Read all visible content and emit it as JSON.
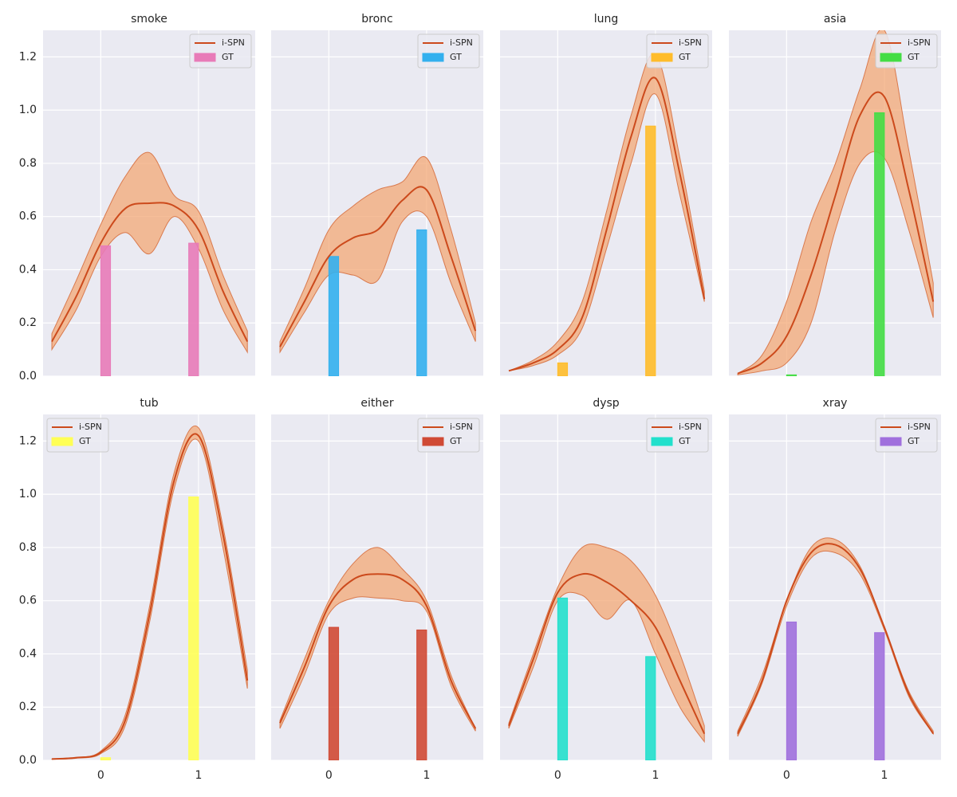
{
  "chart_data": [
    {
      "type": "line",
      "title": "smoke",
      "x": [
        -0.5,
        -0.25,
        0,
        0.25,
        0.5,
        0.75,
        1,
        1.25,
        1.5
      ],
      "xlim": [
        -0.59,
        1.58
      ],
      "ylim": [
        0,
        1.3
      ],
      "xticks": [
        0,
        1
      ],
      "yticks": [
        {
          "value": 0,
          "label": "0.0"
        },
        {
          "value": 0.2,
          "label": "0.2"
        },
        {
          "value": 0.4,
          "label": "0.4"
        },
        {
          "value": 0.6,
          "label": "0.6"
        },
        {
          "value": 0.8,
          "label": "0.8"
        },
        {
          "value": 1,
          "label": "1.0"
        },
        {
          "value": 1.2,
          "label": "1.2"
        }
      ],
      "legend": "upper right",
      "series": [
        {
          "name": "i-SPN",
          "color": "#cc4a1c",
          "values": [
            0.13,
            0.3,
            0.5,
            0.63,
            0.65,
            0.64,
            0.55,
            0.32,
            0.13
          ],
          "upper": [
            0.16,
            0.36,
            0.57,
            0.75,
            0.84,
            0.68,
            0.62,
            0.38,
            0.17
          ],
          "lower": [
            0.1,
            0.25,
            0.45,
            0.54,
            0.46,
            0.6,
            0.48,
            0.25,
            0.09
          ]
        }
      ],
      "bars": {
        "name": "GT",
        "color": "#e87bb8",
        "x": [
          0,
          0.9
        ],
        "width": 0.1,
        "values": [
          0.49,
          0.5
        ]
      }
    },
    {
      "type": "line",
      "title": "bronc",
      "x": [
        -0.5,
        -0.25,
        0,
        0.25,
        0.5,
        0.75,
        1,
        1.25,
        1.5
      ],
      "xlim": [
        -0.59,
        1.58
      ],
      "ylim": [
        0,
        1.3
      ],
      "xticks": [
        0,
        1
      ],
      "yticks": [
        0,
        0.2,
        0.4,
        0.6,
        0.8,
        1,
        1.2
      ],
      "legend": "upper right",
      "series": [
        {
          "name": "i-SPN",
          "color": "#cc4a1c",
          "values": [
            0.11,
            0.28,
            0.45,
            0.52,
            0.55,
            0.66,
            0.7,
            0.45,
            0.17
          ],
          "upper": [
            0.13,
            0.33,
            0.55,
            0.64,
            0.7,
            0.73,
            0.82,
            0.55,
            0.2
          ],
          "lower": [
            0.09,
            0.24,
            0.38,
            0.38,
            0.36,
            0.58,
            0.6,
            0.35,
            0.13
          ]
        }
      ],
      "bars": {
        "name": "GT",
        "color": "#33b0ee",
        "x": [
          0,
          0.9
        ],
        "width": 0.1,
        "values": [
          0.45,
          0.55
        ]
      }
    },
    {
      "type": "line",
      "title": "lung",
      "x": [
        -0.5,
        -0.25,
        0,
        0.25,
        0.5,
        0.75,
        1,
        1.25,
        1.5
      ],
      "xlim": [
        -0.59,
        1.58
      ],
      "ylim": [
        0,
        1.3
      ],
      "xticks": [
        0,
        1
      ],
      "yticks": [
        0,
        0.2,
        0.4,
        0.6,
        0.8,
        1,
        1.2
      ],
      "legend": "upper right",
      "series": [
        {
          "name": "i-SPN",
          "color": "#cc4a1c",
          "values": [
            0.02,
            0.05,
            0.1,
            0.22,
            0.55,
            0.9,
            1.12,
            0.76,
            0.29
          ],
          "upper": [
            0.02,
            0.06,
            0.13,
            0.28,
            0.62,
            0.98,
            1.21,
            0.82,
            0.32
          ],
          "lower": [
            0.02,
            0.04,
            0.08,
            0.18,
            0.48,
            0.8,
            1.06,
            0.68,
            0.28
          ]
        }
      ],
      "bars": {
        "name": "GT",
        "color": "#ffbc2a",
        "x": [
          0,
          0.9
        ],
        "width": 0.1,
        "values": [
          0.05,
          0.94
        ]
      }
    },
    {
      "type": "line",
      "title": "asia",
      "x": [
        -0.5,
        -0.25,
        0,
        0.25,
        0.5,
        0.75,
        1,
        1.25,
        1.5
      ],
      "xlim": [
        -0.59,
        1.58
      ],
      "ylim": [
        0,
        1.3
      ],
      "xticks": [
        0,
        1
      ],
      "yticks": [
        0,
        0.2,
        0.4,
        0.6,
        0.8,
        1,
        1.2
      ],
      "legend": "upper right",
      "series": [
        {
          "name": "i-SPN",
          "color": "#cc4a1c",
          "values": [
            0.01,
            0.05,
            0.15,
            0.38,
            0.68,
            0.98,
            1.05,
            0.7,
            0.28
          ],
          "upper": [
            0.01,
            0.08,
            0.28,
            0.58,
            0.8,
            1.08,
            1.3,
            0.85,
            0.35
          ],
          "lower": [
            0.005,
            0.02,
            0.05,
            0.2,
            0.55,
            0.8,
            0.82,
            0.55,
            0.22
          ]
        }
      ],
      "bars": {
        "name": "GT",
        "color": "#44dd44",
        "x": [
          0,
          0.9
        ],
        "width": 0.1,
        "values": [
          0.005,
          0.99
        ]
      }
    },
    {
      "type": "line",
      "title": "tub",
      "x": [
        -0.5,
        -0.25,
        0,
        0.25,
        0.5,
        0.75,
        1,
        1.25,
        1.5
      ],
      "xlim": [
        -0.59,
        1.58
      ],
      "ylim": [
        0,
        1.3
      ],
      "xticks": [
        0,
        1
      ],
      "yticks": [
        {
          "value": 0,
          "label": "0.0"
        },
        {
          "value": 0.2,
          "label": "0.2"
        },
        {
          "value": 0.4,
          "label": "0.4"
        },
        {
          "value": 0.6,
          "label": "0.6"
        },
        {
          "value": 0.8,
          "label": "0.8"
        },
        {
          "value": 1,
          "label": "1.0"
        },
        {
          "value": 1.2,
          "label": "1.2"
        }
      ],
      "legend": "upper left",
      "series": [
        {
          "name": "i-SPN",
          "color": "#cc4a1c",
          "values": [
            0.005,
            0.01,
            0.03,
            0.15,
            0.55,
            1.05,
            1.22,
            0.85,
            0.3
          ],
          "upper": [
            0.005,
            0.01,
            0.035,
            0.17,
            0.58,
            1.08,
            1.25,
            0.88,
            0.34
          ],
          "lower": [
            0.004,
            0.008,
            0.025,
            0.13,
            0.52,
            1.02,
            1.2,
            0.8,
            0.27
          ]
        }
      ],
      "bars": {
        "name": "GT",
        "color": "#ffff55",
        "x": [
          0,
          0.9
        ],
        "width": 0.1,
        "values": [
          0.01,
          0.99
        ]
      }
    },
    {
      "type": "line",
      "title": "either",
      "x": [
        -0.5,
        -0.25,
        0,
        0.25,
        0.5,
        0.75,
        1,
        1.25,
        1.5
      ],
      "xlim": [
        -0.59,
        1.58
      ],
      "ylim": [
        0,
        1.3
      ],
      "xticks": [
        0,
        1
      ],
      "yticks": [
        0,
        0.2,
        0.4,
        0.6,
        0.8,
        1,
        1.2
      ],
      "legend": "upper right",
      "series": [
        {
          "name": "i-SPN",
          "color": "#cc4a1c",
          "values": [
            0.14,
            0.35,
            0.58,
            0.68,
            0.7,
            0.68,
            0.58,
            0.3,
            0.12
          ],
          "upper": [
            0.15,
            0.38,
            0.6,
            0.74,
            0.8,
            0.72,
            0.6,
            0.32,
            0.12
          ],
          "lower": [
            0.12,
            0.32,
            0.55,
            0.61,
            0.61,
            0.6,
            0.56,
            0.28,
            0.11
          ]
        }
      ],
      "bars": {
        "name": "GT",
        "color": "#d04a35",
        "x": [
          0,
          0.9
        ],
        "width": 0.1,
        "values": [
          0.5,
          0.49
        ]
      }
    },
    {
      "type": "line",
      "title": "dysp",
      "x": [
        -0.5,
        -0.25,
        0,
        0.25,
        0.5,
        0.75,
        1,
        1.25,
        1.5
      ],
      "xlim": [
        -0.59,
        1.58
      ],
      "ylim": [
        0,
        1.3
      ],
      "xticks": [
        0,
        1
      ],
      "yticks": [
        0,
        0.2,
        0.4,
        0.6,
        0.8,
        1,
        1.2
      ],
      "legend": "upper right",
      "series": [
        {
          "name": "i-SPN",
          "color": "#cc4a1c",
          "values": [
            0.13,
            0.38,
            0.63,
            0.7,
            0.67,
            0.6,
            0.5,
            0.3,
            0.1
          ],
          "upper": [
            0.14,
            0.4,
            0.65,
            0.8,
            0.8,
            0.75,
            0.62,
            0.4,
            0.13
          ],
          "lower": [
            0.12,
            0.35,
            0.6,
            0.62,
            0.53,
            0.6,
            0.4,
            0.2,
            0.07
          ]
        }
      ],
      "bars": {
        "name": "GT",
        "color": "#22e0cc",
        "x": [
          0,
          0.9
        ],
        "width": 0.1,
        "values": [
          0.61,
          0.39
        ]
      }
    },
    {
      "type": "line",
      "title": "xray",
      "x": [
        -0.5,
        -0.25,
        0,
        0.25,
        0.5,
        0.75,
        1,
        1.25,
        1.5
      ],
      "xlim": [
        -0.59,
        1.58
      ],
      "ylim": [
        0,
        1.3
      ],
      "xticks": [
        0,
        1
      ],
      "yticks": [
        0,
        0.2,
        0.4,
        0.6,
        0.8,
        1,
        1.2
      ],
      "legend": "upper right",
      "series": [
        {
          "name": "i-SPN",
          "color": "#cc4a1c",
          "values": [
            0.1,
            0.3,
            0.6,
            0.78,
            0.81,
            0.72,
            0.5,
            0.25,
            0.1
          ],
          "upper": [
            0.11,
            0.32,
            0.6,
            0.8,
            0.83,
            0.73,
            0.5,
            0.26,
            0.11
          ],
          "lower": [
            0.09,
            0.29,
            0.58,
            0.76,
            0.78,
            0.7,
            0.49,
            0.24,
            0.1
          ]
        }
      ],
      "bars": {
        "name": "GT",
        "color": "#a070dd",
        "x": [
          0,
          0.9
        ],
        "width": 0.1,
        "values": [
          0.52,
          0.48
        ]
      }
    }
  ]
}
